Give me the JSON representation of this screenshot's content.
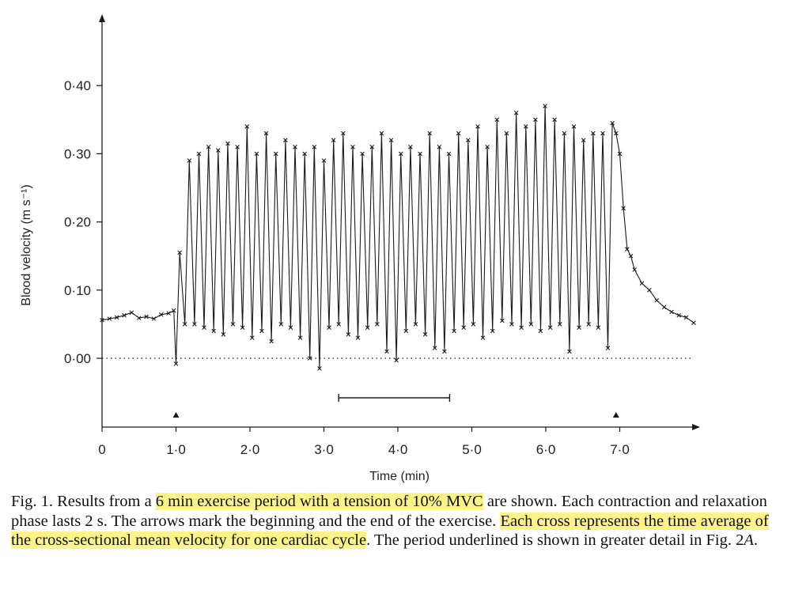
{
  "chart_data": {
    "type": "line",
    "xlabel": "Time (min)",
    "ylabel": "Blood velocity (m s⁻¹)",
    "xlim": [
      0,
      8.1
    ],
    "ylim": [
      -0.1,
      0.5
    ],
    "xticks": [
      {
        "value": 0,
        "label": "0"
      },
      {
        "value": 1,
        "label": "1·0"
      },
      {
        "value": 2,
        "label": "2·0"
      },
      {
        "value": 3,
        "label": "3·0"
      },
      {
        "value": 4,
        "label": "4·0"
      },
      {
        "value": 5,
        "label": "5·0"
      },
      {
        "value": 6,
        "label": "6·0"
      },
      {
        "value": 7,
        "label": "7·0"
      }
    ],
    "yticks": [
      {
        "value": 0.0,
        "label": "0·00"
      },
      {
        "value": 0.1,
        "label": "0·10"
      },
      {
        "value": 0.2,
        "label": "0·20"
      },
      {
        "value": 0.3,
        "label": "0·30"
      },
      {
        "value": 0.4,
        "label": "0·40"
      }
    ],
    "zero_line": {
      "y": 0.0,
      "style": "dotted"
    },
    "exercise_markers": [
      {
        "x": 1.0
      },
      {
        "x": 6.95
      }
    ],
    "underlined_period": {
      "x": [
        3.2,
        4.7
      ],
      "y": -0.058
    },
    "marker": "cross",
    "series": [
      {
        "baseline_pre": {
          "x": [
            0.0,
            0.1,
            0.2,
            0.3,
            0.4,
            0.5,
            0.6,
            0.7,
            0.8,
            0.9,
            0.97
          ],
          "y": [
            0.056,
            0.058,
            0.06,
            0.063,
            0.067,
            0.059,
            0.061,
            0.058,
            0.064,
            0.066,
            0.07
          ]
        },
        "exercise_peaks": {
          "x": [
            1.05,
            1.18,
            1.31,
            1.44,
            1.57,
            1.7,
            1.83,
            1.96,
            2.09,
            2.22,
            2.35,
            2.48,
            2.61,
            2.74,
            2.87,
            3.0,
            3.13,
            3.26,
            3.39,
            3.52,
            3.65,
            3.78,
            3.91,
            4.04,
            4.17,
            4.3,
            4.43,
            4.56,
            4.69,
            4.82,
            4.95,
            5.08,
            5.21,
            5.34,
            5.47,
            5.6,
            5.73,
            5.86,
            5.99,
            6.12,
            6.25,
            6.38,
            6.51,
            6.64,
            6.77,
            6.9
          ],
          "y": [
            0.155,
            0.29,
            0.3,
            0.31,
            0.305,
            0.315,
            0.31,
            0.34,
            0.3,
            0.33,
            0.3,
            0.32,
            0.31,
            0.3,
            0.31,
            0.29,
            0.32,
            0.33,
            0.31,
            0.3,
            0.31,
            0.33,
            0.32,
            0.3,
            0.31,
            0.3,
            0.33,
            0.31,
            0.3,
            0.33,
            0.32,
            0.34,
            0.31,
            0.35,
            0.33,
            0.36,
            0.34,
            0.35,
            0.37,
            0.35,
            0.33,
            0.34,
            0.32,
            0.33,
            0.33,
            0.345
          ]
        },
        "exercise_troughs": {
          "x": [
            1.0,
            1.12,
            1.25,
            1.38,
            1.51,
            1.64,
            1.77,
            1.9,
            2.03,
            2.16,
            2.29,
            2.42,
            2.55,
            2.68,
            2.81,
            2.94,
            3.07,
            3.2,
            3.33,
            3.46,
            3.59,
            3.72,
            3.85,
            3.98,
            4.11,
            4.24,
            4.37,
            4.5,
            4.63,
            4.76,
            4.89,
            5.02,
            5.15,
            5.28,
            5.41,
            5.54,
            5.67,
            5.8,
            5.93,
            6.06,
            6.19,
            6.32,
            6.45,
            6.58,
            6.71,
            6.84
          ],
          "y": [
            -0.008,
            0.05,
            0.05,
            0.045,
            0.04,
            0.035,
            0.05,
            0.045,
            0.03,
            0.04,
            0.025,
            0.05,
            0.045,
            0.03,
            0.0,
            -0.015,
            0.045,
            0.05,
            0.035,
            0.03,
            0.045,
            0.05,
            0.01,
            -0.003,
            0.04,
            0.05,
            0.035,
            0.015,
            0.01,
            0.04,
            0.045,
            0.05,
            0.03,
            0.04,
            0.055,
            0.05,
            0.045,
            0.05,
            0.04,
            0.045,
            0.05,
            0.01,
            0.045,
            0.05,
            0.045,
            0.015
          ]
        },
        "recovery": {
          "x": [
            6.95,
            7.0,
            7.05,
            7.1,
            7.15,
            7.2,
            7.3,
            7.4,
            7.5,
            7.6,
            7.7,
            7.8,
            7.9,
            8.0
          ],
          "y": [
            0.33,
            0.3,
            0.22,
            0.16,
            0.15,
            0.13,
            0.11,
            0.1,
            0.085,
            0.075,
            0.068,
            0.063,
            0.06,
            0.052
          ]
        }
      }
    ]
  },
  "caption": {
    "p1": "Fig. 1. Results from a ",
    "h1": "6 min exercise period with a tension of 10% MVC",
    "p2": " are shown. Each contraction and relaxation phase lasts 2 s. The arrows mark the beginning and the end of the exercise. ",
    "h2": "Each cross represents the time average of the cross-sectional mean velocity for one cardiac cycle",
    "p3": ". The period underlined is shown in greater detail in Fig. 2",
    "p4": "A",
    "p5": "."
  },
  "colors": {
    "line": "#1a1a1a",
    "highlight": "#fbf28a"
  }
}
